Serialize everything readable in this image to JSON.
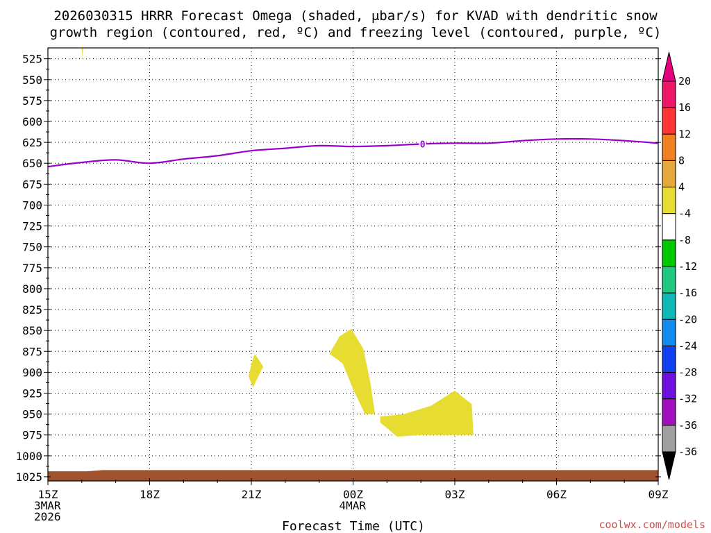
{
  "chart_data": {
    "type": "contour",
    "title_lines": [
      "2026030315 HRRR Forecast Omega (shaded, μbar/s) for KVAD with dendritic snow",
      "growth region (contoured, red, ºC) and freezing level (contoured, purple, ºC)"
    ],
    "xlabel": "Forecast Time (UTC)",
    "x_range_hours": [
      0,
      18
    ],
    "x_ticks": [
      {
        "hour": 0,
        "lines": [
          "15Z",
          "3MAR",
          "2026"
        ]
      },
      {
        "hour": 3,
        "lines": [
          "18Z"
        ]
      },
      {
        "hour": 6,
        "lines": [
          "21Z"
        ]
      },
      {
        "hour": 9,
        "lines": [
          "00Z",
          "4MAR"
        ]
      },
      {
        "hour": 12,
        "lines": [
          "03Z"
        ]
      },
      {
        "hour": 15,
        "lines": [
          "06Z"
        ]
      },
      {
        "hour": 18,
        "lines": [
          "09Z"
        ]
      }
    ],
    "y_ticks_hpa": [
      525,
      550,
      575,
      600,
      625,
      650,
      675,
      700,
      725,
      750,
      775,
      800,
      825,
      850,
      875,
      900,
      925,
      950,
      975,
      1000,
      1025
    ],
    "y_range_hpa": [
      512,
      1030
    ],
    "freezing_level": {
      "label": "0",
      "color": "#9900cc",
      "points": [
        [
          0,
          654
        ],
        [
          1,
          649
        ],
        [
          2,
          646
        ],
        [
          3,
          650
        ],
        [
          4,
          645
        ],
        [
          5,
          641
        ],
        [
          6,
          635
        ],
        [
          7,
          632
        ],
        [
          8,
          629
        ],
        [
          9,
          630
        ],
        [
          10,
          629
        ],
        [
          11,
          627
        ],
        [
          12,
          626
        ],
        [
          13,
          626
        ],
        [
          14,
          623
        ],
        [
          15,
          621
        ],
        [
          16,
          621
        ],
        [
          17,
          623
        ],
        [
          18,
          626
        ]
      ]
    },
    "omega_regions": [
      {
        "level": "4 to 8",
        "color": "#e6dc32",
        "points": [
          [
            1.0,
            512
          ],
          [
            1.04,
            512
          ],
          [
            1.02,
            525
          ]
        ]
      },
      {
        "level": "4 to 8",
        "color": "#e6dc32",
        "points": [
          [
            6.0,
            890
          ],
          [
            6.1,
            878
          ],
          [
            6.35,
            893
          ],
          [
            6.05,
            918
          ],
          [
            5.92,
            905
          ]
        ]
      },
      {
        "level": "4 to 8",
        "color": "#e6dc32",
        "points": [
          [
            8.3,
            878
          ],
          [
            8.6,
            857
          ],
          [
            8.95,
            848
          ],
          [
            9.3,
            872
          ],
          [
            9.5,
            910
          ],
          [
            9.65,
            950
          ],
          [
            9.35,
            950
          ],
          [
            9.0,
            920
          ],
          [
            8.7,
            890
          ],
          [
            8.55,
            885
          ]
        ]
      },
      {
        "level": "4 to 8",
        "color": "#e6dc32",
        "points": [
          [
            9.8,
            953
          ],
          [
            10.5,
            950
          ],
          [
            11.3,
            940
          ],
          [
            12.0,
            922
          ],
          [
            12.5,
            938
          ],
          [
            12.55,
            975
          ],
          [
            11.0,
            975
          ],
          [
            10.3,
            977
          ],
          [
            9.8,
            960
          ]
        ]
      }
    ],
    "terrain": {
      "color": "#a0522d",
      "top_hpa_left": 1018.5,
      "top_hpa_right": 1017
    },
    "colorbar": {
      "segments": [
        {
          "label": "20",
          "color": "#ee1666"
        },
        {
          "label": "16",
          "color": "#ff3535"
        },
        {
          "label": "12",
          "color": "#f08020"
        },
        {
          "label": "8",
          "color": "#e6a83c"
        },
        {
          "label": "4",
          "color": "#e6dc32"
        },
        {
          "label": "-4",
          "color": "#ffffff"
        },
        {
          "label": "-8",
          "color": "#00c800"
        },
        {
          "label": "-12",
          "color": "#20c880"
        },
        {
          "label": "-16",
          "color": "#10b8b8"
        },
        {
          "label": "-20",
          "color": "#108cf0"
        },
        {
          "label": "-24",
          "color": "#1040f0"
        },
        {
          "label": "-28",
          "color": "#7010e0"
        },
        {
          "label": "-32",
          "color": "#a010c0"
        },
        {
          "label": "-36",
          "color": "#a0a0a0"
        }
      ],
      "top_cap_color": "#e6007e",
      "bottom_cap_color": "#000000"
    }
  },
  "credit": "coolwx.com/models"
}
